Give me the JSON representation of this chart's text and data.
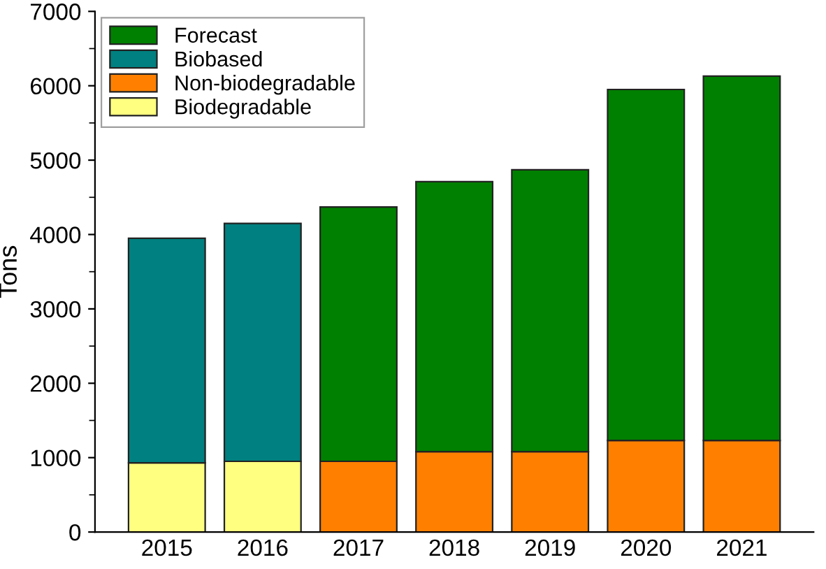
{
  "chart_data": {
    "type": "bar",
    "stacked": true,
    "ylabel": "Tons",
    "categories": [
      "2015",
      "2016",
      "2017",
      "2018",
      "2019",
      "2020",
      "2021"
    ],
    "series": [
      {
        "name": "Biodegradable",
        "color": "#ffff80",
        "values": [
          930,
          950,
          null,
          null,
          null,
          null,
          null
        ]
      },
      {
        "name": "Non-biodegradable",
        "color": "#ff8000",
        "values": [
          null,
          null,
          950,
          1080,
          1080,
          1230,
          1230
        ]
      },
      {
        "name": "Biobased",
        "color": "#008080",
        "values": [
          3020,
          3200,
          null,
          null,
          null,
          null,
          null
        ]
      },
      {
        "name": "Forecast",
        "color": "#008000",
        "values": [
          null,
          null,
          3420,
          3630,
          3790,
          4720,
          4900
        ]
      }
    ],
    "ylim": [
      0,
      7000
    ],
    "yticks": [
      0,
      1000,
      2000,
      3000,
      4000,
      5000,
      6000,
      7000
    ],
    "legend": "top left",
    "grid": false
  }
}
